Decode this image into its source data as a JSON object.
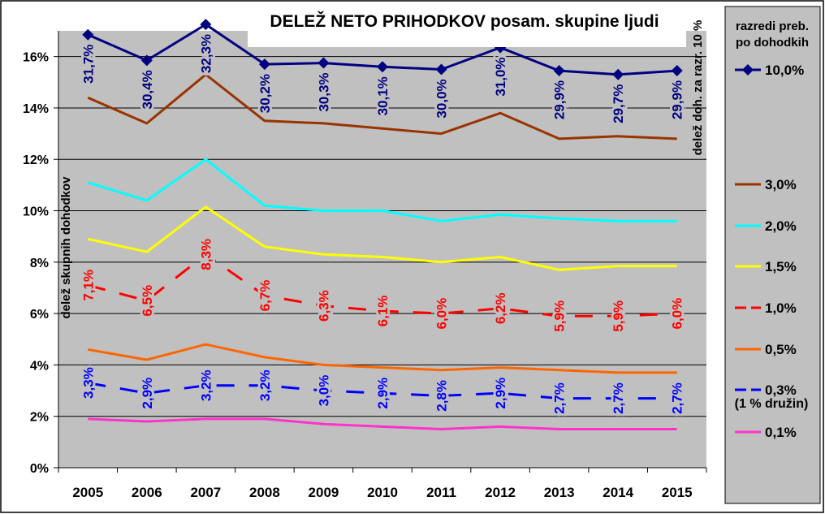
{
  "chart_data": {
    "type": "line",
    "title": "DELEŽ NETO PRIHODKOV posam. skupine ljudi",
    "ylabel": "delež skupnih dohodkov",
    "y2label": "delež doh. za razr. 10 %",
    "ylim": [
      0,
      17
    ],
    "yticks": [
      "0%",
      "2%",
      "4%",
      "6%",
      "8%",
      "10%",
      "12%",
      "14%",
      "16%"
    ],
    "grid": "horizontal",
    "legend_title": "razredi preb. po dohodkih",
    "legend_note": "(1 % družin)",
    "legend_position": "right",
    "categories": [
      "2005",
      "2006",
      "2007",
      "2008",
      "2009",
      "2010",
      "2011",
      "2012",
      "2013",
      "2014",
      "2015"
    ],
    "series": [
      {
        "name": "10,0%",
        "color": "#000080",
        "style": "solid-marker",
        "values": [
          16.85,
          15.85,
          17.25,
          15.7,
          15.75,
          15.6,
          15.5,
          16.35,
          15.45,
          15.3,
          15.45
        ],
        "labels": [
          "31,7%",
          "30,4%",
          "32,3%",
          "30,2%",
          "30,3%",
          "30,1%",
          "30,0%",
          "31,0%",
          "29,9%",
          "29,7%",
          "29,9%"
        ]
      },
      {
        "name": "3,0%",
        "color": "#993300",
        "style": "solid",
        "values": [
          14.4,
          13.4,
          15.3,
          13.5,
          13.4,
          13.2,
          13.0,
          13.8,
          12.8,
          12.9,
          12.8
        ]
      },
      {
        "name": "2,0%",
        "color": "#00ffff",
        "style": "solid",
        "values": [
          11.1,
          10.4,
          12.0,
          10.2,
          10.0,
          10.0,
          9.6,
          9.85,
          9.7,
          9.6,
          9.6
        ]
      },
      {
        "name": "1,5%",
        "color": "#ffff00",
        "style": "solid",
        "values": [
          8.9,
          8.4,
          10.15,
          8.6,
          8.3,
          8.2,
          8.0,
          8.2,
          7.7,
          7.85,
          7.85
        ]
      },
      {
        "name": "1,0%",
        "color": "#ff0000",
        "style": "dashed",
        "values": [
          7.1,
          6.5,
          8.3,
          6.7,
          6.3,
          6.1,
          6.0,
          6.2,
          5.9,
          5.9,
          6.0
        ],
        "labels": [
          "7,1%",
          "6,5%",
          "8,3%",
          "6,7%",
          "6,3%",
          "6,1%",
          "6,0%",
          "6,2%",
          "5,9%",
          "5,9%",
          "6,0%"
        ]
      },
      {
        "name": "0,5%",
        "color": "#ff6600",
        "style": "solid",
        "values": [
          4.6,
          4.2,
          4.8,
          4.3,
          4.0,
          3.9,
          3.8,
          3.9,
          3.8,
          3.7,
          3.7
        ]
      },
      {
        "name": "0,3%",
        "color": "#0000ff",
        "style": "dashed",
        "values": [
          3.3,
          2.9,
          3.2,
          3.2,
          3.0,
          2.9,
          2.8,
          2.9,
          2.7,
          2.7,
          2.7
        ],
        "labels": [
          "3,3%",
          "2,9%",
          "3,2%",
          "3,2%",
          "3,0%",
          "2,9%",
          "2,8%",
          "2,9%",
          "2,7%",
          "2,7%",
          "2,7%"
        ]
      },
      {
        "name": "0,1%",
        "color": "#ff33cc",
        "style": "solid",
        "values": [
          1.9,
          1.8,
          1.9,
          1.9,
          1.7,
          1.6,
          1.5,
          1.6,
          1.5,
          1.5,
          1.5
        ]
      }
    ]
  }
}
